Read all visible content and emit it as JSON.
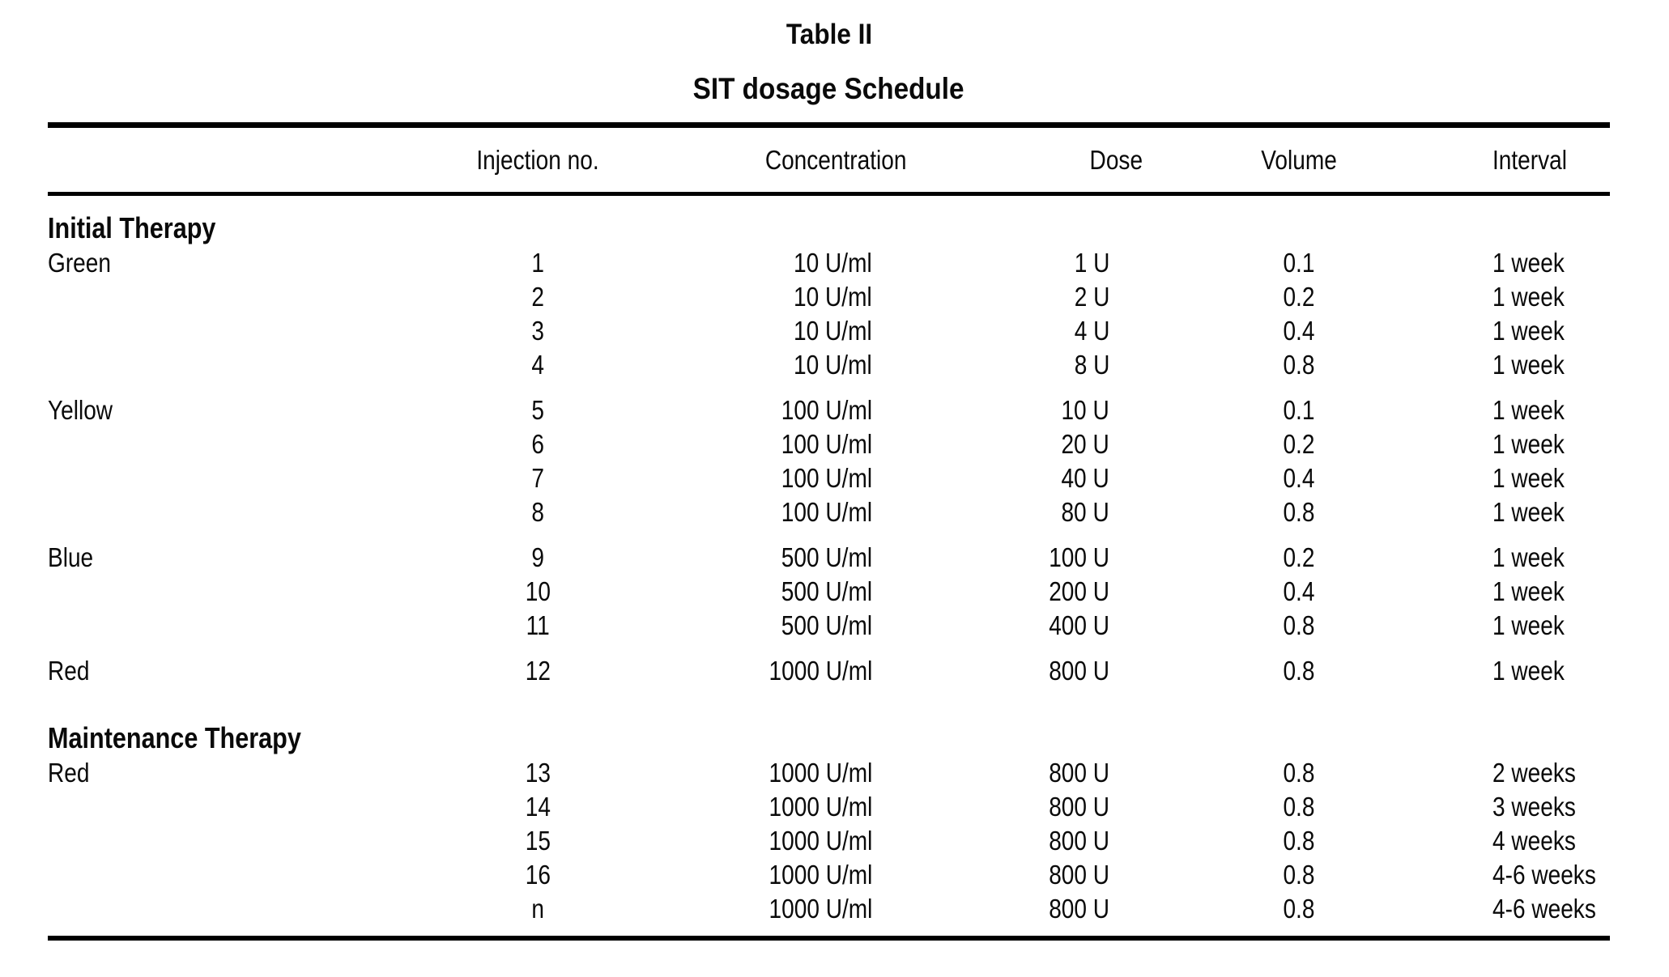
{
  "page": {
    "title": "Table II",
    "subtitle": "SIT dosage Schedule"
  },
  "table": {
    "columns": [
      "",
      "Injection no.",
      "Concentration",
      "Dose",
      "Volume",
      "Interval"
    ],
    "sections": [
      {
        "name": "Initial Therapy",
        "groups": [
          {
            "label": "Green",
            "rows": [
              {
                "injection": "1",
                "concentration": "10 U/ml",
                "dose": "1 U",
                "volume": "0.1",
                "interval": "1 week"
              },
              {
                "injection": "2",
                "concentration": "10 U/ml",
                "dose": "2 U",
                "volume": "0.2",
                "interval": "1 week"
              },
              {
                "injection": "3",
                "concentration": "10 U/ml",
                "dose": "4 U",
                "volume": "0.4",
                "interval": "1 week"
              },
              {
                "injection": "4",
                "concentration": "10 U/ml",
                "dose": "8 U",
                "volume": "0.8",
                "interval": "1 week"
              }
            ]
          },
          {
            "label": "Yellow",
            "rows": [
              {
                "injection": "5",
                "concentration": "100 U/ml",
                "dose": "10 U",
                "volume": "0.1",
                "interval": "1 week"
              },
              {
                "injection": "6",
                "concentration": "100 U/ml",
                "dose": "20 U",
                "volume": "0.2",
                "interval": "1 week"
              },
              {
                "injection": "7",
                "concentration": "100 U/ml",
                "dose": "40 U",
                "volume": "0.4",
                "interval": "1 week"
              },
              {
                "injection": "8",
                "concentration": "100 U/ml",
                "dose": "80 U",
                "volume": "0.8",
                "interval": "1 week"
              }
            ]
          },
          {
            "label": "Blue",
            "rows": [
              {
                "injection": "9",
                "concentration": "500 U/ml",
                "dose": "100 U",
                "volume": "0.2",
                "interval": "1 week"
              },
              {
                "injection": "10",
                "concentration": "500 U/ml",
                "dose": "200 U",
                "volume": "0.4",
                "interval": "1 week"
              },
              {
                "injection": "11",
                "concentration": "500 U/ml",
                "dose": "400 U",
                "volume": "0.8",
                "interval": "1 week"
              }
            ]
          },
          {
            "label": "Red",
            "rows": [
              {
                "injection": "12",
                "concentration": "1000 U/ml",
                "dose": "800 U",
                "volume": "0.8",
                "interval": "1 week"
              }
            ]
          }
        ]
      },
      {
        "name": "Maintenance Therapy",
        "groups": [
          {
            "label": "Red",
            "rows": [
              {
                "injection": "13",
                "concentration": "1000 U/ml",
                "dose": "800 U",
                "volume": "0.8",
                "interval": "2 weeks"
              },
              {
                "injection": "14",
                "concentration": "1000 U/ml",
                "dose": "800 U",
                "volume": "0.8",
                "interval": "3 weeks"
              },
              {
                "injection": "15",
                "concentration": "1000 U/ml",
                "dose": "800 U",
                "volume": "0.8",
                "interval": "4 weeks"
              },
              {
                "injection": "16",
                "concentration": "1000 U/ml",
                "dose": "800 U",
                "volume": "0.8",
                "interval": "4-6 weeks"
              },
              {
                "injection": "n",
                "concentration": "1000 U/ml",
                "dose": "800 U",
                "volume": "0.8",
                "interval": "4-6 weeks"
              }
            ]
          }
        ]
      }
    ]
  }
}
